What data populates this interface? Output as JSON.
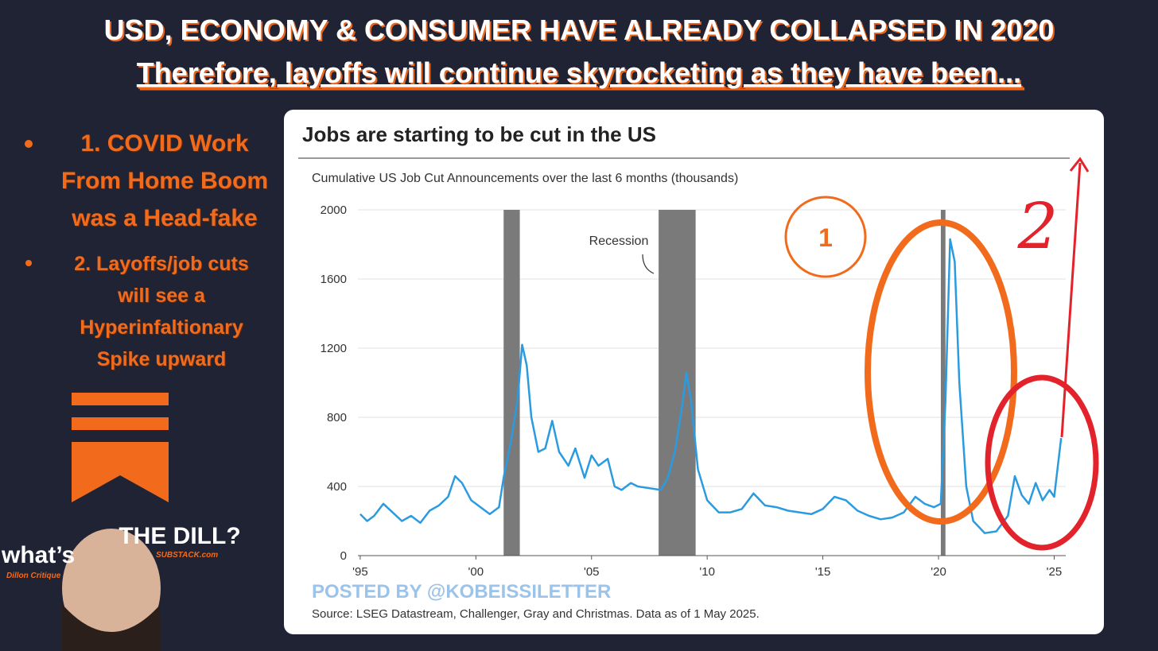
{
  "header": {
    "title": "USD, ECONOMY & CONSUMER HAVE ALREADY COLLAPSED IN 2020",
    "subtitle": "Therefore, layoffs will continue skyrocketing as they have been..."
  },
  "bullets": [
    {
      "lines": [
        "1. COVID Work",
        "From Home Boom",
        "was a Head-fake"
      ]
    },
    {
      "lines": [
        "2. Layoffs/job cuts",
        "will see a",
        "Hyperinfaltionary",
        "Spike upward"
      ]
    }
  ],
  "branding": {
    "name": "THE DILL?",
    "prefix": "what’s",
    "site": "SUBSTACK.com",
    "tagline": "Dillon Critique"
  },
  "chart_data": {
    "type": "line",
    "title": "Jobs are starting to be cut in the US",
    "subtitle": "Cumulative US Job Cut Announcements over the last 6 months (thousands)",
    "x": [
      1995.0,
      1995.3,
      1995.6,
      1996.0,
      1996.4,
      1996.8,
      1997.2,
      1997.6,
      1998.0,
      1998.4,
      1998.8,
      1999.1,
      1999.4,
      1999.8,
      2000.2,
      2000.6,
      2001.0,
      2001.2,
      2001.5,
      2001.8,
      2002.0,
      2002.2,
      2002.4,
      2002.7,
      2003.0,
      2003.3,
      2003.6,
      2004.0,
      2004.3,
      2004.7,
      2005.0,
      2005.3,
      2005.7,
      2006.0,
      2006.3,
      2006.7,
      2007.0,
      2007.5,
      2008.0,
      2008.3,
      2008.6,
      2008.9,
      2009.1,
      2009.3,
      2009.6,
      2010.0,
      2010.5,
      2011.0,
      2011.5,
      2012.0,
      2012.5,
      2013.0,
      2013.5,
      2014.0,
      2014.5,
      2015.0,
      2015.5,
      2016.0,
      2016.5,
      2017.0,
      2017.5,
      2018.0,
      2018.5,
      2019.0,
      2019.4,
      2019.8,
      2020.1,
      2020.3,
      2020.5,
      2020.7,
      2020.9,
      2021.2,
      2021.5,
      2022.0,
      2022.5,
      2023.0,
      2023.3,
      2023.6,
      2023.9,
      2024.2,
      2024.5,
      2024.8,
      2025.0,
      2025.3
    ],
    "values": [
      240,
      200,
      230,
      300,
      250,
      200,
      230,
      190,
      260,
      290,
      340,
      460,
      420,
      320,
      280,
      240,
      280,
      450,
      650,
      900,
      1220,
      1100,
      800,
      600,
      620,
      780,
      600,
      520,
      620,
      450,
      580,
      520,
      560,
      400,
      380,
      420,
      400,
      390,
      380,
      450,
      600,
      850,
      1060,
      900,
      500,
      320,
      250,
      250,
      270,
      360,
      290,
      280,
      260,
      250,
      240,
      270,
      340,
      320,
      260,
      230,
      210,
      220,
      250,
      340,
      300,
      280,
      300,
      900,
      1830,
      1700,
      1000,
      400,
      200,
      130,
      140,
      230,
      460,
      350,
      300,
      420,
      320,
      380,
      340,
      680
    ],
    "color": "#2b9be0",
    "recessions": [
      [
        2001.2,
        2001.9
      ],
      [
        2007.9,
        2009.5
      ],
      [
        2020.1,
        2020.3
      ]
    ],
    "recession_label": "Recession",
    "xlim": [
      1994.9,
      2025.5
    ],
    "xticks": [
      {
        "value": 1995,
        "label": "'95"
      },
      {
        "value": 2000,
        "label": "'00"
      },
      {
        "value": 2005,
        "label": "'05"
      },
      {
        "value": 2010,
        "label": "'10"
      },
      {
        "value": 2015,
        "label": "'15"
      },
      {
        "value": 2020,
        "label": "'20"
      },
      {
        "value": 2025,
        "label": "'25"
      }
    ],
    "ylim": [
      0,
      2000
    ],
    "yticks": [
      0,
      400,
      800,
      1200,
      1600,
      2000
    ],
    "grid": true,
    "watermark": "POSTED BY @KOBEISSILETTER",
    "source": "Source: LSEG Datastream, Challenger, Gray and Christmas. Data as of 1 May 2025.",
    "markers": [
      "1",
      "2"
    ]
  }
}
